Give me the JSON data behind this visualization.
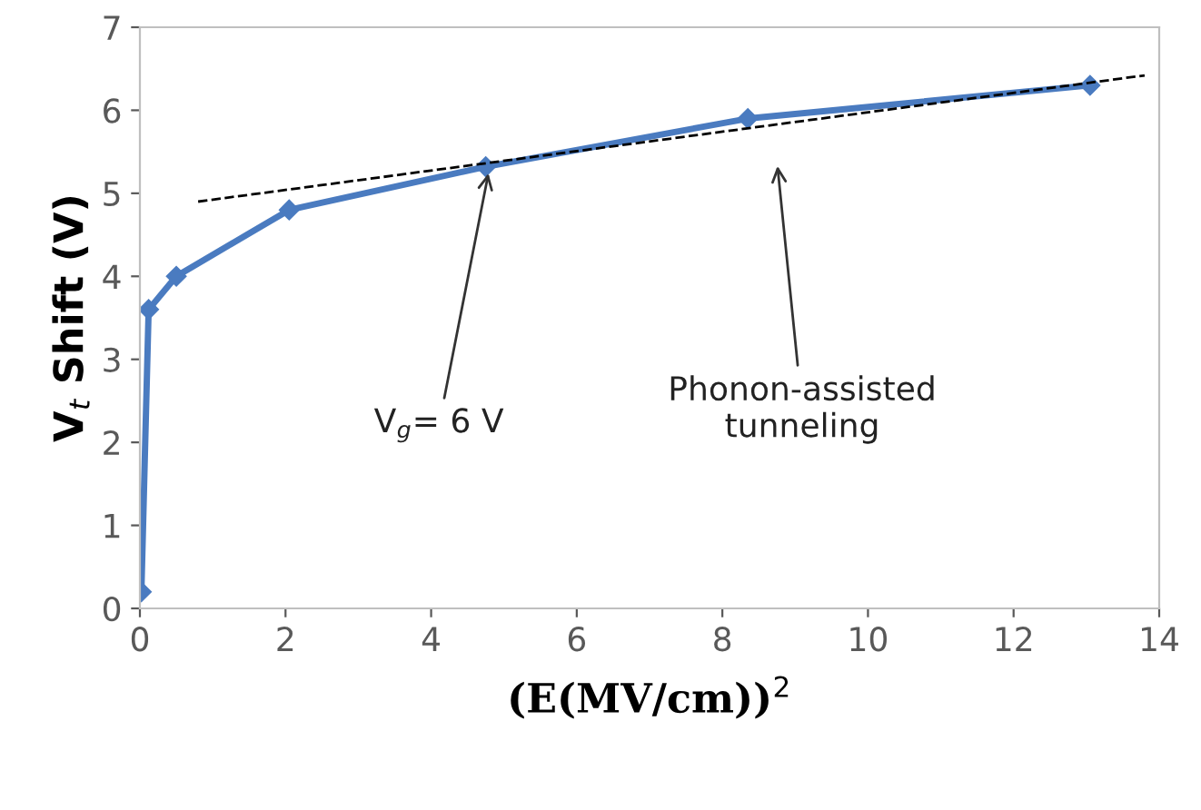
{
  "chart_data": {
    "type": "line",
    "xlabel": "(E(MV/cm))$^{2}$",
    "ylabel": "V$_{t}$ Shift (V)",
    "xlim": [
      0,
      14
    ],
    "xticks": [
      0,
      2,
      4,
      6,
      8,
      10,
      12,
      14
    ],
    "ylim": [
      0,
      7
    ],
    "yticks": [
      0,
      1,
      2,
      3,
      4,
      5,
      6,
      7
    ],
    "grid": false,
    "series": [
      {
        "color": "#4a7bc0",
        "marker": "diamond",
        "line_style": "solid",
        "x": [
          0.02,
          0.12,
          0.5,
          2.05,
          4.75,
          8.35,
          13.05
        ],
        "values": [
          0.2,
          3.6,
          4.0,
          4.8,
          5.32,
          5.9,
          6.3
        ]
      },
      {
        "color": "#000000",
        "marker": "none",
        "line_style": "dashed",
        "x": [
          0.8,
          13.8
        ],
        "values": [
          4.9,
          6.42
        ]
      }
    ],
    "annotations": [
      {
        "text": "V$_{g}$= 6 V",
        "x": 4.8,
        "y": 5.3
      },
      "Phonon-assisted\ntunneling"
    ]
  }
}
